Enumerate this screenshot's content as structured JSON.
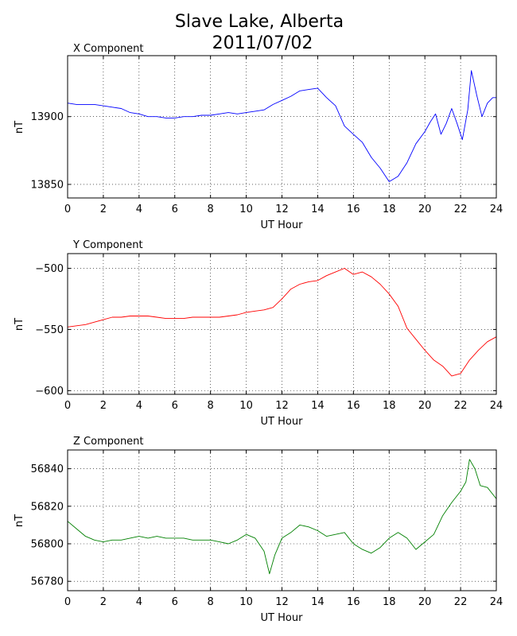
{
  "figure": {
    "title_line1": "Slave Lake, Alberta",
    "title_line2": "2011/07/02"
  },
  "chart_data": [
    {
      "type": "line",
      "title": "X Component",
      "xlabel": "UT Hour",
      "ylabel": "nT",
      "xlim": [
        0,
        24
      ],
      "ylim": [
        13840,
        13945
      ],
      "xticks": [
        0,
        2,
        4,
        6,
        8,
        10,
        12,
        14,
        16,
        18,
        20,
        22,
        24
      ],
      "yticks": [
        13850,
        13900
      ],
      "grid": true,
      "color": "#0000ff",
      "series": [
        {
          "x": [
            0,
            0.5,
            1,
            1.5,
            2,
            2.5,
            3,
            3.5,
            4,
            4.5,
            5,
            5.5,
            6,
            6.5,
            7,
            7.5,
            8,
            8.5,
            9,
            9.5,
            10,
            10.5,
            11,
            11.5,
            12,
            12.5,
            13,
            13.5,
            14,
            14.5,
            15,
            15.5,
            16,
            16.5,
            17,
            17.5,
            18,
            18.5,
            19,
            19.5,
            20,
            20.3,
            20.6,
            20.9,
            21.2,
            21.5,
            21.8,
            22.1,
            22.4,
            22.6,
            22.9,
            23.2,
            23.5,
            23.8,
            24
          ],
          "y": [
            13910,
            13909,
            13909,
            13909,
            13908,
            13907,
            13906,
            13903,
            13902,
            13900,
            13900,
            13899,
            13899,
            13900,
            13900,
            13901,
            13901,
            13902,
            13903,
            13902,
            13903,
            13904,
            13905,
            13909,
            13912,
            13915,
            13919,
            13920,
            13921,
            13914,
            13908,
            13893,
            13887,
            13881,
            13870,
            13862,
            13852,
            13856,
            13866,
            13880,
            13889,
            13896,
            13902,
            13887,
            13895,
            13906,
            13895,
            13883,
            13905,
            13934,
            13916,
            13900,
            13910,
            13914,
            13914
          ]
        }
      ]
    },
    {
      "type": "line",
      "title": "Y Component",
      "xlabel": "UT Hour",
      "ylabel": "nT",
      "xlim": [
        0,
        24
      ],
      "ylim": [
        -603,
        -488
      ],
      "xticks": [
        0,
        2,
        4,
        6,
        8,
        10,
        12,
        14,
        16,
        18,
        20,
        22,
        24
      ],
      "yticks": [
        -500,
        -550,
        -600
      ],
      "grid": true,
      "color": "#ff0000",
      "series": [
        {
          "x": [
            0,
            0.5,
            1,
            1.5,
            2,
            2.5,
            3,
            3.5,
            4,
            4.5,
            5,
            5.5,
            6,
            6.5,
            7,
            7.5,
            8,
            8.5,
            9,
            9.5,
            10,
            10.5,
            11,
            11.5,
            12,
            12.5,
            13,
            13.5,
            14,
            14.5,
            15,
            15.5,
            16,
            16.5,
            17,
            17.5,
            18,
            18.5,
            19,
            19.5,
            20,
            20.5,
            21,
            21.5,
            22,
            22.5,
            23,
            23.5,
            24
          ],
          "y": [
            -548,
            -547,
            -546,
            -544,
            -542,
            -540,
            -540,
            -539,
            -539,
            -539,
            -540,
            -541,
            -541,
            -541,
            -540,
            -540,
            -540,
            -540,
            -539,
            -538,
            -536,
            -535,
            -534,
            -532,
            -525,
            -517,
            -513,
            -511,
            -510,
            -506,
            -503,
            -500,
            -505,
            -503,
            -507,
            -513,
            -521,
            -531,
            -549,
            -558,
            -567,
            -575,
            -580,
            -588,
            -586,
            -575,
            -567,
            -560,
            -556
          ]
        }
      ]
    },
    {
      "type": "line",
      "title": "Z Component",
      "xlabel": "UT Hour",
      "ylabel": "nT",
      "xlim": [
        0,
        24
      ],
      "ylim": [
        56775,
        56850
      ],
      "xticks": [
        0,
        2,
        4,
        6,
        8,
        10,
        12,
        14,
        16,
        18,
        20,
        22,
        24
      ],
      "yticks": [
        56780,
        56800,
        56820,
        56840
      ],
      "grid": true,
      "color": "#008000",
      "series": [
        {
          "x": [
            0,
            0.5,
            1,
            1.5,
            2,
            2.5,
            3,
            3.5,
            4,
            4.5,
            5,
            5.5,
            6,
            6.5,
            7,
            7.5,
            8,
            8.5,
            9,
            9.5,
            10,
            10.5,
            11,
            11.3,
            11.6,
            12,
            12.5,
            13,
            13.5,
            14,
            14.5,
            15,
            15.5,
            16,
            16.5,
            17,
            17.5,
            18,
            18.5,
            19,
            19.5,
            20,
            20.5,
            21,
            21.5,
            22,
            22.3,
            22.5,
            22.8,
            23.1,
            23.5,
            24
          ],
          "y": [
            56812,
            56808,
            56804,
            56802,
            56801,
            56802,
            56802,
            56803,
            56804,
            56803,
            56804,
            56803,
            56803,
            56803,
            56802,
            56802,
            56802,
            56801,
            56800,
            56802,
            56805,
            56803,
            56796,
            56784,
            56794,
            56803,
            56806,
            56810,
            56809,
            56807,
            56804,
            56805,
            56806,
            56800,
            56797,
            56795,
            56798,
            56803,
            56806,
            56803,
            56797,
            56801,
            56805,
            56815,
            56822,
            56828,
            56833,
            56845,
            56840,
            56831,
            56830,
            56824
          ]
        }
      ]
    }
  ]
}
